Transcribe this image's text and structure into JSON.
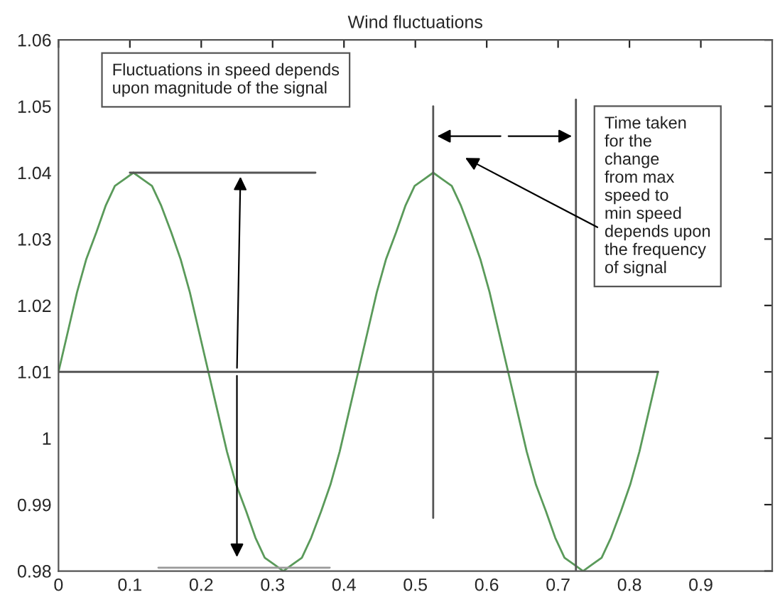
{
  "chart_data": {
    "type": "line",
    "title": "Wind fluctuations",
    "xlim": [
      0,
      1
    ],
    "xticks": [
      0,
      0.1,
      0.2,
      0.3,
      0.4,
      0.5,
      0.6,
      0.7,
      0.8,
      0.9
    ],
    "ylim": [
      0.98,
      1.06
    ],
    "yticks": [
      0.98,
      0.99,
      1,
      1.01,
      1.02,
      1.03,
      1.04,
      1.05,
      1.06
    ],
    "grid": false,
    "marker": "none",
    "line_style": "solid",
    "series": [
      {
        "color": "#5a9a5a",
        "x": [
          0,
          0.013,
          0.026,
          0.039,
          0.053,
          0.066,
          0.079,
          0.092,
          0.105,
          0.118,
          0.131,
          0.144,
          0.158,
          0.171,
          0.184,
          0.197,
          0.21,
          0.223,
          0.236,
          0.249,
          0.263,
          0.276,
          0.289,
          0.302,
          0.315,
          0.328,
          0.341,
          0.354,
          0.368,
          0.381,
          0.394,
          0.407,
          0.42,
          0.433,
          0.446,
          0.459,
          0.473,
          0.486,
          0.499,
          0.512,
          0.525,
          0.538,
          0.551,
          0.564,
          0.578,
          0.591,
          0.604,
          0.617,
          0.63,
          0.643,
          0.656,
          0.669,
          0.683,
          0.696,
          0.709,
          0.722,
          0.735,
          0.748,
          0.761,
          0.774,
          0.788,
          0.801,
          0.814,
          0.827,
          0.84
        ],
        "values": [
          1.01,
          1.016,
          1.022,
          1.027,
          1.031,
          1.035,
          1.038,
          1.039,
          1.04,
          1.039,
          1.038,
          1.035,
          1.031,
          1.027,
          1.022,
          1.016,
          1.01,
          1.004,
          0.998,
          0.993,
          0.989,
          0.985,
          0.982,
          0.981,
          0.98,
          0.981,
          0.982,
          0.985,
          0.989,
          0.993,
          0.998,
          1.004,
          1.01,
          1.016,
          1.022,
          1.027,
          1.031,
          1.035,
          1.038,
          1.039,
          1.04,
          1.039,
          1.038,
          1.035,
          1.031,
          1.027,
          1.022,
          1.016,
          1.01,
          1.004,
          0.998,
          0.993,
          0.989,
          0.985,
          0.982,
          0.981,
          0.98,
          0.981,
          0.982,
          0.985,
          0.989,
          0.993,
          0.998,
          1.004,
          1.01
        ]
      },
      {
        "color": "#555555",
        "x": [
          0,
          0.84
        ],
        "values": [
          1.01,
          1.01
        ]
      },
      {
        "color": "#555555",
        "x": [
          0.1,
          0.36
        ],
        "values": [
          1.04,
          1.04
        ]
      },
      {
        "color": "#555555",
        "x": [
          0.525,
          0.525
        ],
        "values": [
          0.988,
          1.05
        ]
      },
      {
        "color": "#555555",
        "x": [
          0.725,
          0.725
        ],
        "values": [
          0.98,
          1.051
        ]
      },
      {
        "color": "#999999",
        "x": [
          0.14,
          0.38
        ],
        "values": [
          0.9805,
          0.9805
        ]
      }
    ],
    "annotations": [
      "Fluctuations in speed depends\nupon magnitude of the signal",
      "Time taken\nfor the\nchange\nfrom max\nspeed to\nmin speed\ndepends upon\nthe frequency\nof signal"
    ]
  }
}
